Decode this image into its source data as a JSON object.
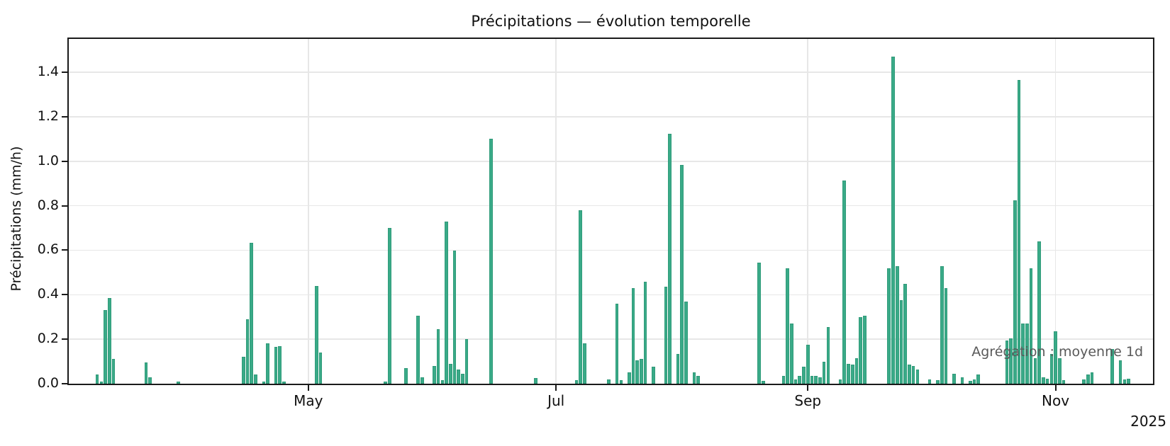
{
  "title": "Précipitations — évolution temporelle",
  "annotation": "Agrégation : moyenne 1d",
  "year_label": "2025",
  "colors": {
    "bar_fill": "#3aaa88",
    "bar_edge": "#2e8f70",
    "grid": "#e7e7e7",
    "axis": "#1a1a1a",
    "annotation_text": "#595959"
  },
  "chart_data": {
    "type": "bar",
    "title": "Précipitations — évolution temporelle",
    "xlabel": "",
    "ylabel": "Précipitations (mm/h)",
    "unit": "mm/h",
    "aggregation": "moyenne 1d",
    "grid": true,
    "legend": false,
    "ylim": [
      0,
      1.55
    ],
    "y_ticks": [
      "0.0",
      "0.2",
      "0.4",
      "0.6",
      "0.8",
      "1.0",
      "1.2",
      "1.4"
    ],
    "x_domain": [
      "2025-03-03",
      "2025-11-25"
    ],
    "x_ticks": [
      {
        "date": "2025-05-01",
        "label": "May"
      },
      {
        "date": "2025-07-01",
        "label": "Jul"
      },
      {
        "date": "2025-09-01",
        "label": "Sep"
      },
      {
        "date": "2025-11-01",
        "label": "Nov"
      }
    ],
    "x_year": "2025",
    "bars": [
      [
        "2025-03-10",
        0.04
      ],
      [
        "2025-03-11",
        0.01
      ],
      [
        "2025-03-12",
        0.33
      ],
      [
        "2025-03-13",
        0.385
      ],
      [
        "2025-03-14",
        0.11
      ],
      [
        "2025-03-22",
        0.095
      ],
      [
        "2025-03-23",
        0.03
      ],
      [
        "2025-03-30",
        0.01
      ],
      [
        "2025-04-15",
        0.12
      ],
      [
        "2025-04-16",
        0.29
      ],
      [
        "2025-04-17",
        0.635
      ],
      [
        "2025-04-18",
        0.04
      ],
      [
        "2025-04-20",
        0.01
      ],
      [
        "2025-04-21",
        0.18
      ],
      [
        "2025-04-23",
        0.165
      ],
      [
        "2025-04-24",
        0.17
      ],
      [
        "2025-04-25",
        0.01
      ],
      [
        "2025-05-03",
        0.44
      ],
      [
        "2025-05-04",
        0.14
      ],
      [
        "2025-05-20",
        0.01
      ],
      [
        "2025-05-21",
        0.7
      ],
      [
        "2025-05-25",
        0.07
      ],
      [
        "2025-05-28",
        0.305
      ],
      [
        "2025-05-29",
        0.03
      ],
      [
        "2025-06-01",
        0.08
      ],
      [
        "2025-06-02",
        0.245
      ],
      [
        "2025-06-03",
        0.015
      ],
      [
        "2025-06-04",
        0.73
      ],
      [
        "2025-06-05",
        0.09
      ],
      [
        "2025-06-06",
        0.6
      ],
      [
        "2025-06-07",
        0.065
      ],
      [
        "2025-06-08",
        0.045
      ],
      [
        "2025-06-09",
        0.2
      ],
      [
        "2025-06-15",
        1.1
      ],
      [
        "2025-06-26",
        0.025
      ],
      [
        "2025-07-06",
        0.015
      ],
      [
        "2025-07-07",
        0.78
      ],
      [
        "2025-07-08",
        0.18
      ],
      [
        "2025-07-14",
        0.02
      ],
      [
        "2025-07-16",
        0.36
      ],
      [
        "2025-07-17",
        0.015
      ],
      [
        "2025-07-19",
        0.05
      ],
      [
        "2025-07-20",
        0.43
      ],
      [
        "2025-07-21",
        0.105
      ],
      [
        "2025-07-22",
        0.11
      ],
      [
        "2025-07-23",
        0.46
      ],
      [
        "2025-07-25",
        0.075
      ],
      [
        "2025-07-28",
        0.435
      ],
      [
        "2025-07-29",
        1.125
      ],
      [
        "2025-07-31",
        0.135
      ],
      [
        "2025-08-01",
        0.985
      ],
      [
        "2025-08-02",
        0.37
      ],
      [
        "2025-08-04",
        0.05
      ],
      [
        "2025-08-05",
        0.035
      ],
      [
        "2025-08-20",
        0.545
      ],
      [
        "2025-08-21",
        0.012
      ],
      [
        "2025-08-26",
        0.035
      ],
      [
        "2025-08-27",
        0.52
      ],
      [
        "2025-08-28",
        0.27
      ],
      [
        "2025-08-29",
        0.02
      ],
      [
        "2025-08-30",
        0.035
      ],
      [
        "2025-08-31",
        0.075
      ],
      [
        "2025-09-01",
        0.175
      ],
      [
        "2025-09-02",
        0.035
      ],
      [
        "2025-09-03",
        0.035
      ],
      [
        "2025-09-04",
        0.03
      ],
      [
        "2025-09-05",
        0.1
      ],
      [
        "2025-09-06",
        0.255
      ],
      [
        "2025-09-09",
        0.02
      ],
      [
        "2025-09-10",
        0.915
      ],
      [
        "2025-09-11",
        0.09
      ],
      [
        "2025-09-12",
        0.085
      ],
      [
        "2025-09-13",
        0.115
      ],
      [
        "2025-09-14",
        0.3
      ],
      [
        "2025-09-15",
        0.305
      ],
      [
        "2025-09-21",
        0.52
      ],
      [
        "2025-09-22",
        1.47
      ],
      [
        "2025-09-23",
        0.53
      ],
      [
        "2025-09-24",
        0.375
      ],
      [
        "2025-09-25",
        0.45
      ],
      [
        "2025-09-26",
        0.085
      ],
      [
        "2025-09-27",
        0.08
      ],
      [
        "2025-09-28",
        0.065
      ],
      [
        "2025-10-01",
        0.018
      ],
      [
        "2025-10-03",
        0.015
      ],
      [
        "2025-10-04",
        0.53
      ],
      [
        "2025-10-05",
        0.43
      ],
      [
        "2025-10-07",
        0.045
      ],
      [
        "2025-10-09",
        0.03
      ],
      [
        "2025-10-11",
        0.012
      ],
      [
        "2025-10-12",
        0.02
      ],
      [
        "2025-10-13",
        0.04
      ],
      [
        "2025-10-20",
        0.195
      ],
      [
        "2025-10-21",
        0.205
      ],
      [
        "2025-10-22",
        0.825
      ],
      [
        "2025-10-23",
        1.365
      ],
      [
        "2025-10-24",
        0.27
      ],
      [
        "2025-10-25",
        0.27
      ],
      [
        "2025-10-26",
        0.52
      ],
      [
        "2025-10-27",
        0.115
      ],
      [
        "2025-10-28",
        0.64
      ],
      [
        "2025-10-29",
        0.03
      ],
      [
        "2025-10-30",
        0.022
      ],
      [
        "2025-10-31",
        0.135
      ],
      [
        "2025-11-01",
        0.235
      ],
      [
        "2025-11-02",
        0.115
      ],
      [
        "2025-11-03",
        0.015
      ],
      [
        "2025-11-08",
        0.02
      ],
      [
        "2025-11-09",
        0.04
      ],
      [
        "2025-11-10",
        0.05
      ],
      [
        "2025-11-15",
        0.155
      ],
      [
        "2025-11-17",
        0.105
      ],
      [
        "2025-11-18",
        0.02
      ],
      [
        "2025-11-19",
        0.022
      ]
    ]
  }
}
